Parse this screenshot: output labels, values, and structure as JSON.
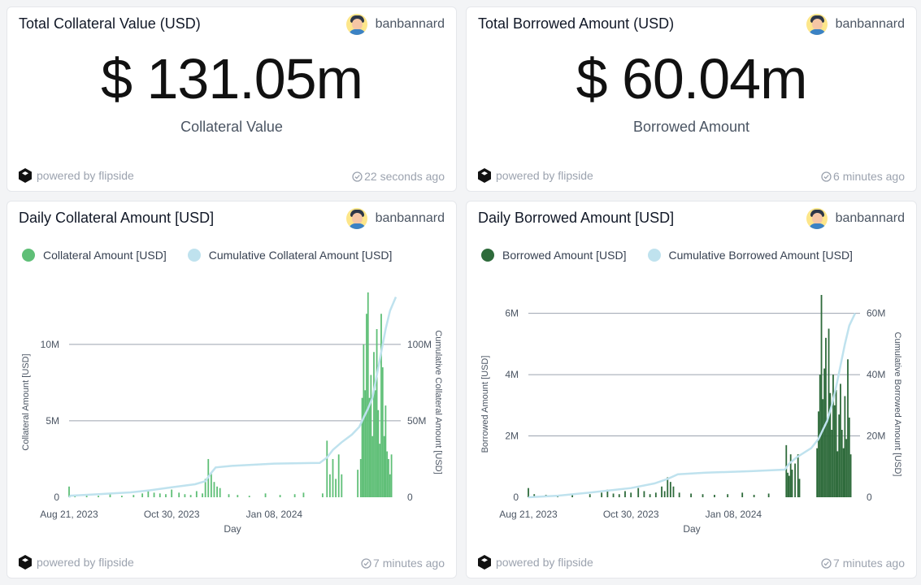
{
  "cards": {
    "collateral_value": {
      "title": "Total Collateral Value (USD)",
      "author": "banbannard",
      "value": "$ 131.05m",
      "caption": "Collateral Value",
      "powered": "powered by flipside",
      "updated": "22 seconds ago"
    },
    "borrowed_amount": {
      "title": "Total Borrowed Amount (USD)",
      "author": "banbannard",
      "value": "$ 60.04m",
      "caption": "Borrowed Amount",
      "powered": "powered by flipside",
      "updated": "6 minutes ago"
    },
    "daily_collateral": {
      "title": "Daily Collateral Amount [USD]",
      "author": "banbannard",
      "powered": "powered by flipside",
      "updated": "7 minutes ago"
    },
    "daily_borrowed": {
      "title": "Daily Borrowed Amount [USD]",
      "author": "banbannard",
      "powered": "powered by flipside",
      "updated": "7 minutes ago"
    }
  },
  "chart_data": [
    {
      "type": "bar",
      "xlabel": "Day",
      "ylabel": "Collateral Amount [USD]",
      "y2label": "Cumulative Collateral Amount [USD]",
      "ylim": [
        0,
        13500000
      ],
      "y2lim": [
        0,
        135000000
      ],
      "yticks": [
        0,
        5000000,
        10000000
      ],
      "ytick_labels": [
        "0",
        "5M",
        "10M"
      ],
      "y2ticks": [
        0,
        50000000,
        100000000
      ],
      "y2tick_labels": [
        "0",
        "50M",
        "100M"
      ],
      "xlim": [
        "2023-08-21",
        "2024-03-31"
      ],
      "xticks": [
        "2023-08-21",
        "2023-10-30",
        "2024-01-08"
      ],
      "xtick_labels": [
        "Aug 21, 2023",
        "Oct 30, 2023",
        "Jan 08, 2024"
      ],
      "grid": true,
      "legend_position": "top-left",
      "bar_color": "#5fbf77",
      "line_color": "#bfe2ee",
      "series": [
        {
          "name": "Collateral Amount [USD]",
          "kind": "bar",
          "x": [
            "2023-08-21",
            "2023-08-25",
            "2023-09-02",
            "2023-09-10",
            "2023-09-18",
            "2023-09-26",
            "2023-10-04",
            "2023-10-10",
            "2023-10-14",
            "2023-10-18",
            "2023-10-22",
            "2023-10-26",
            "2023-10-30",
            "2023-11-04",
            "2023-11-08",
            "2023-11-12",
            "2023-11-16",
            "2023-11-20",
            "2023-11-22",
            "2023-11-24",
            "2023-11-26",
            "2023-11-28",
            "2023-11-30",
            "2023-12-02",
            "2023-12-08",
            "2023-12-14",
            "2023-12-22",
            "2024-01-02",
            "2024-01-12",
            "2024-01-22",
            "2024-01-28",
            "2024-02-10",
            "2024-02-13",
            "2024-02-15",
            "2024-02-17",
            "2024-02-19",
            "2024-02-21",
            "2024-02-23",
            "2024-03-05",
            "2024-03-07",
            "2024-03-08",
            "2024-03-09",
            "2024-03-10",
            "2024-03-11",
            "2024-03-12",
            "2024-03-13",
            "2024-03-14",
            "2024-03-15",
            "2024-03-16",
            "2024-03-17",
            "2024-03-18",
            "2024-03-19",
            "2024-03-20",
            "2024-03-21",
            "2024-03-22",
            "2024-03-23",
            "2024-03-24",
            "2024-03-25",
            "2024-03-26",
            "2024-03-27",
            "2024-03-28"
          ],
          "values": [
            700000,
            100000,
            150000,
            100000,
            200000,
            100000,
            150000,
            250000,
            400000,
            300000,
            250000,
            200000,
            500000,
            300000,
            200000,
            150000,
            400000,
            250000,
            1200000,
            2500000,
            1600000,
            1000000,
            700000,
            600000,
            200000,
            150000,
            100000,
            250000,
            150000,
            200000,
            300000,
            250000,
            3700000,
            1500000,
            2500000,
            1200000,
            2800000,
            1500000,
            1800000,
            2500000,
            6500000,
            10000000,
            7000000,
            12000000,
            13400000,
            6500000,
            8000000,
            4000000,
            9500000,
            7000000,
            11000000,
            5700000,
            3500000,
            12000000,
            8500000,
            4000000,
            6000000,
            3000000,
            2500000,
            1500000,
            2800000
          ]
        },
        {
          "name": "Cumulative Collateral Amount [USD]",
          "kind": "line",
          "x": [
            "2023-08-21",
            "2023-08-22",
            "2023-09-10",
            "2023-10-02",
            "2023-10-15",
            "2023-10-30",
            "2023-11-15",
            "2023-11-22",
            "2023-11-26",
            "2023-11-29",
            "2023-12-10",
            "2024-01-08",
            "2024-02-08",
            "2024-02-13",
            "2024-02-17",
            "2024-02-23",
            "2024-03-01",
            "2024-03-06",
            "2024-03-09",
            "2024-03-12",
            "2024-03-15",
            "2024-03-18",
            "2024-03-21",
            "2024-03-24",
            "2024-03-27",
            "2024-03-31"
          ],
          "values": [
            0,
            1000000,
            2000000,
            3200000,
            4500000,
            6500000,
            8500000,
            10500000,
            16000000,
            19500000,
            20500000,
            22000000,
            22500000,
            26000000,
            31000000,
            36000000,
            41000000,
            46000000,
            52000000,
            58000000,
            65000000,
            80000000,
            95000000,
            110000000,
            122000000,
            131000000
          ]
        }
      ]
    },
    {
      "type": "bar",
      "xlabel": "Day",
      "ylabel": "Borrowed Amount [USD]",
      "y2label": "Cumulative Borrowed Amount [USD]",
      "ylim": [
        0,
        6600000
      ],
      "y2lim": [
        0,
        66000000
      ],
      "yticks": [
        0,
        2000000,
        4000000,
        6000000
      ],
      "ytick_labels": [
        "0",
        "2M",
        "4M",
        "6M"
      ],
      "y2ticks": [
        0,
        20000000,
        40000000,
        60000000
      ],
      "y2tick_labels": [
        "0",
        "20M",
        "40M",
        "60M"
      ],
      "xlim": [
        "2023-08-21",
        "2024-03-31"
      ],
      "xticks": [
        "2023-08-21",
        "2023-10-30",
        "2024-01-08"
      ],
      "xtick_labels": [
        "Aug 21, 2023",
        "Oct 30, 2023",
        "Jan 08, 2024"
      ],
      "grid": true,
      "legend_position": "top-left",
      "bar_color": "#2e6b3b",
      "line_color": "#bfe2ee",
      "series": [
        {
          "name": "Borrowed Amount [USD]",
          "kind": "bar",
          "x": [
            "2023-08-21",
            "2023-08-25",
            "2023-09-02",
            "2023-09-10",
            "2023-09-20",
            "2023-10-02",
            "2023-10-10",
            "2023-10-14",
            "2023-10-18",
            "2023-10-22",
            "2023-10-26",
            "2023-10-30",
            "2023-11-04",
            "2023-11-08",
            "2023-11-12",
            "2023-11-16",
            "2023-11-20",
            "2023-11-22",
            "2023-11-24",
            "2023-11-26",
            "2023-11-28",
            "2023-12-02",
            "2023-12-10",
            "2023-12-18",
            "2023-12-26",
            "2024-01-04",
            "2024-01-14",
            "2024-01-22",
            "2024-02-01",
            "2024-02-13",
            "2024-02-14",
            "2024-02-15",
            "2024-02-16",
            "2024-02-17",
            "2024-02-19",
            "2024-02-21",
            "2024-02-22",
            "2024-03-05",
            "2024-03-06",
            "2024-03-07",
            "2024-03-08",
            "2024-03-09",
            "2024-03-10",
            "2024-03-11",
            "2024-03-12",
            "2024-03-13",
            "2024-03-14",
            "2024-03-15",
            "2024-03-16",
            "2024-03-17",
            "2024-03-18",
            "2024-03-19",
            "2024-03-20",
            "2024-03-21",
            "2024-03-22",
            "2024-03-23",
            "2024-03-24",
            "2024-03-25",
            "2024-03-26",
            "2024-03-27",
            "2024-03-28"
          ],
          "values": [
            300000,
            100000,
            80000,
            60000,
            80000,
            100000,
            150000,
            250000,
            120000,
            100000,
            200000,
            150000,
            300000,
            200000,
            100000,
            150000,
            350000,
            200000,
            650000,
            500000,
            350000,
            150000,
            120000,
            100000,
            80000,
            100000,
            150000,
            80000,
            120000,
            1700000,
            800000,
            700000,
            1400000,
            900000,
            1100000,
            1400000,
            600000,
            1600000,
            2800000,
            4000000,
            6600000,
            3200000,
            4200000,
            5200000,
            2500000,
            5500000,
            3400000,
            2200000,
            4000000,
            3000000,
            3500000,
            1500000,
            2700000,
            3700000,
            2200000,
            1600000,
            3300000,
            1900000,
            4500000,
            2600000,
            1400000
          ]
        },
        {
          "name": "Cumulative Borrowed Amount [USD]",
          "kind": "line",
          "x": [
            "2023-08-21",
            "2023-09-10",
            "2023-10-02",
            "2023-10-30",
            "2023-11-15",
            "2023-11-24",
            "2023-12-01",
            "2023-12-20",
            "2024-01-20",
            "2024-02-12",
            "2024-02-15",
            "2024-02-20",
            "2024-03-01",
            "2024-03-06",
            "2024-03-09",
            "2024-03-12",
            "2024-03-15",
            "2024-03-18",
            "2024-03-21",
            "2024-03-24",
            "2024-03-27",
            "2024-03-31"
          ],
          "values": [
            0,
            500000,
            1500000,
            3000000,
            4500000,
            6000000,
            7500000,
            8000000,
            8500000,
            9000000,
            11000000,
            13000000,
            16000000,
            19000000,
            22000000,
            25000000,
            30000000,
            36000000,
            43000000,
            50000000,
            56000000,
            60000000
          ]
        }
      ]
    }
  ]
}
